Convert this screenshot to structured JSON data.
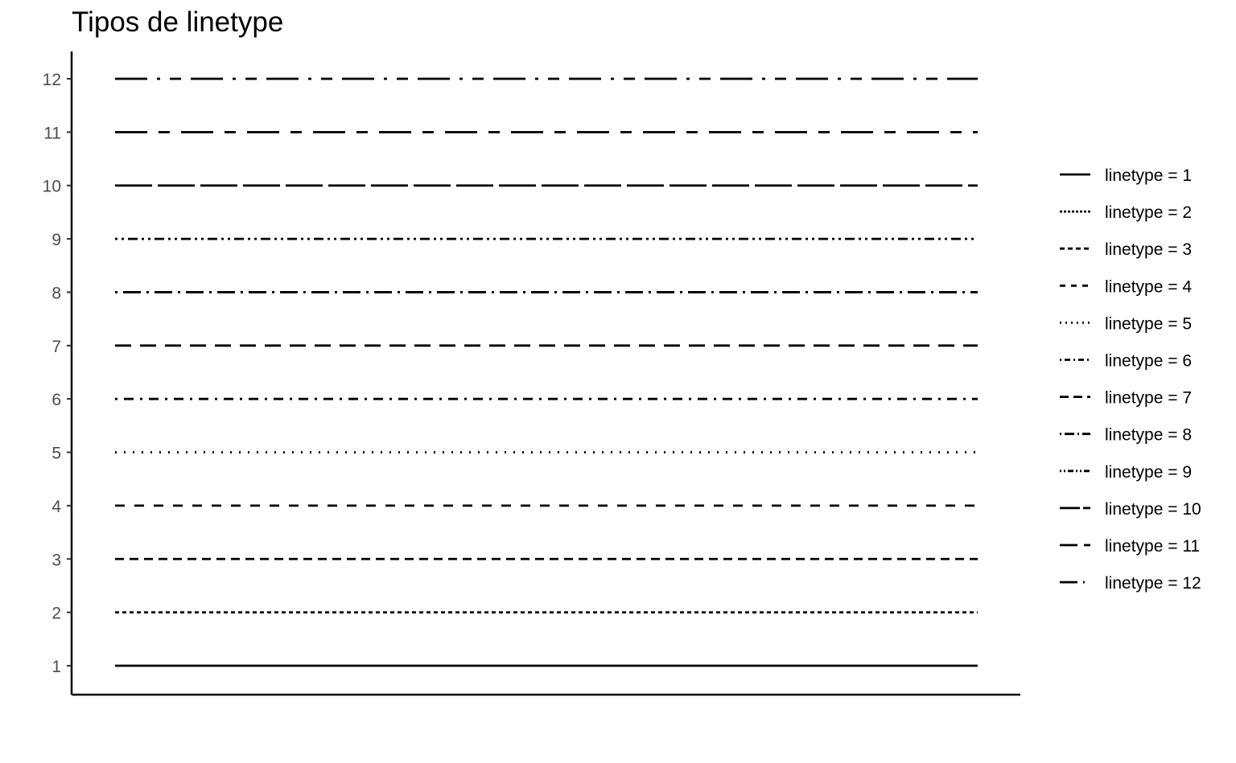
{
  "chart_data": {
    "type": "line",
    "title": "Tipos de linetype",
    "xlabel": "",
    "ylabel": "",
    "ylim": [
      0.5,
      12.5
    ],
    "x_range": [
      0,
      1
    ],
    "grid": false,
    "legend_position": "right",
    "y_ticks": [
      1,
      2,
      3,
      4,
      5,
      6,
      7,
      8,
      9,
      10,
      11,
      12
    ],
    "series": [
      {
        "name": "linetype = 1",
        "y": 1,
        "dash": "solid"
      },
      {
        "name": "linetype = 2",
        "y": 2,
        "dash": "dotted-dash"
      },
      {
        "name": "linetype = 3",
        "y": 3,
        "dash": "dashed"
      },
      {
        "name": "linetype = 4",
        "y": 4,
        "dash": "dashed-sparse"
      },
      {
        "name": "linetype = 5",
        "y": 5,
        "dash": "dotted"
      },
      {
        "name": "linetype = 6",
        "y": 6,
        "dash": "dotdash"
      },
      {
        "name": "linetype = 7",
        "y": 7,
        "dash": "longdash"
      },
      {
        "name": "linetype = 8",
        "y": 8,
        "dash": "twodash"
      },
      {
        "name": "linetype = 9",
        "y": 9,
        "dash": "dot-dot-dash"
      },
      {
        "name": "linetype = 10",
        "y": 10,
        "dash": "long-dash-fine"
      },
      {
        "name": "linetype = 11",
        "y": 11,
        "dash": "long-short"
      },
      {
        "name": "linetype = 12",
        "y": 12,
        "dash": "long-dot-short"
      }
    ]
  }
}
